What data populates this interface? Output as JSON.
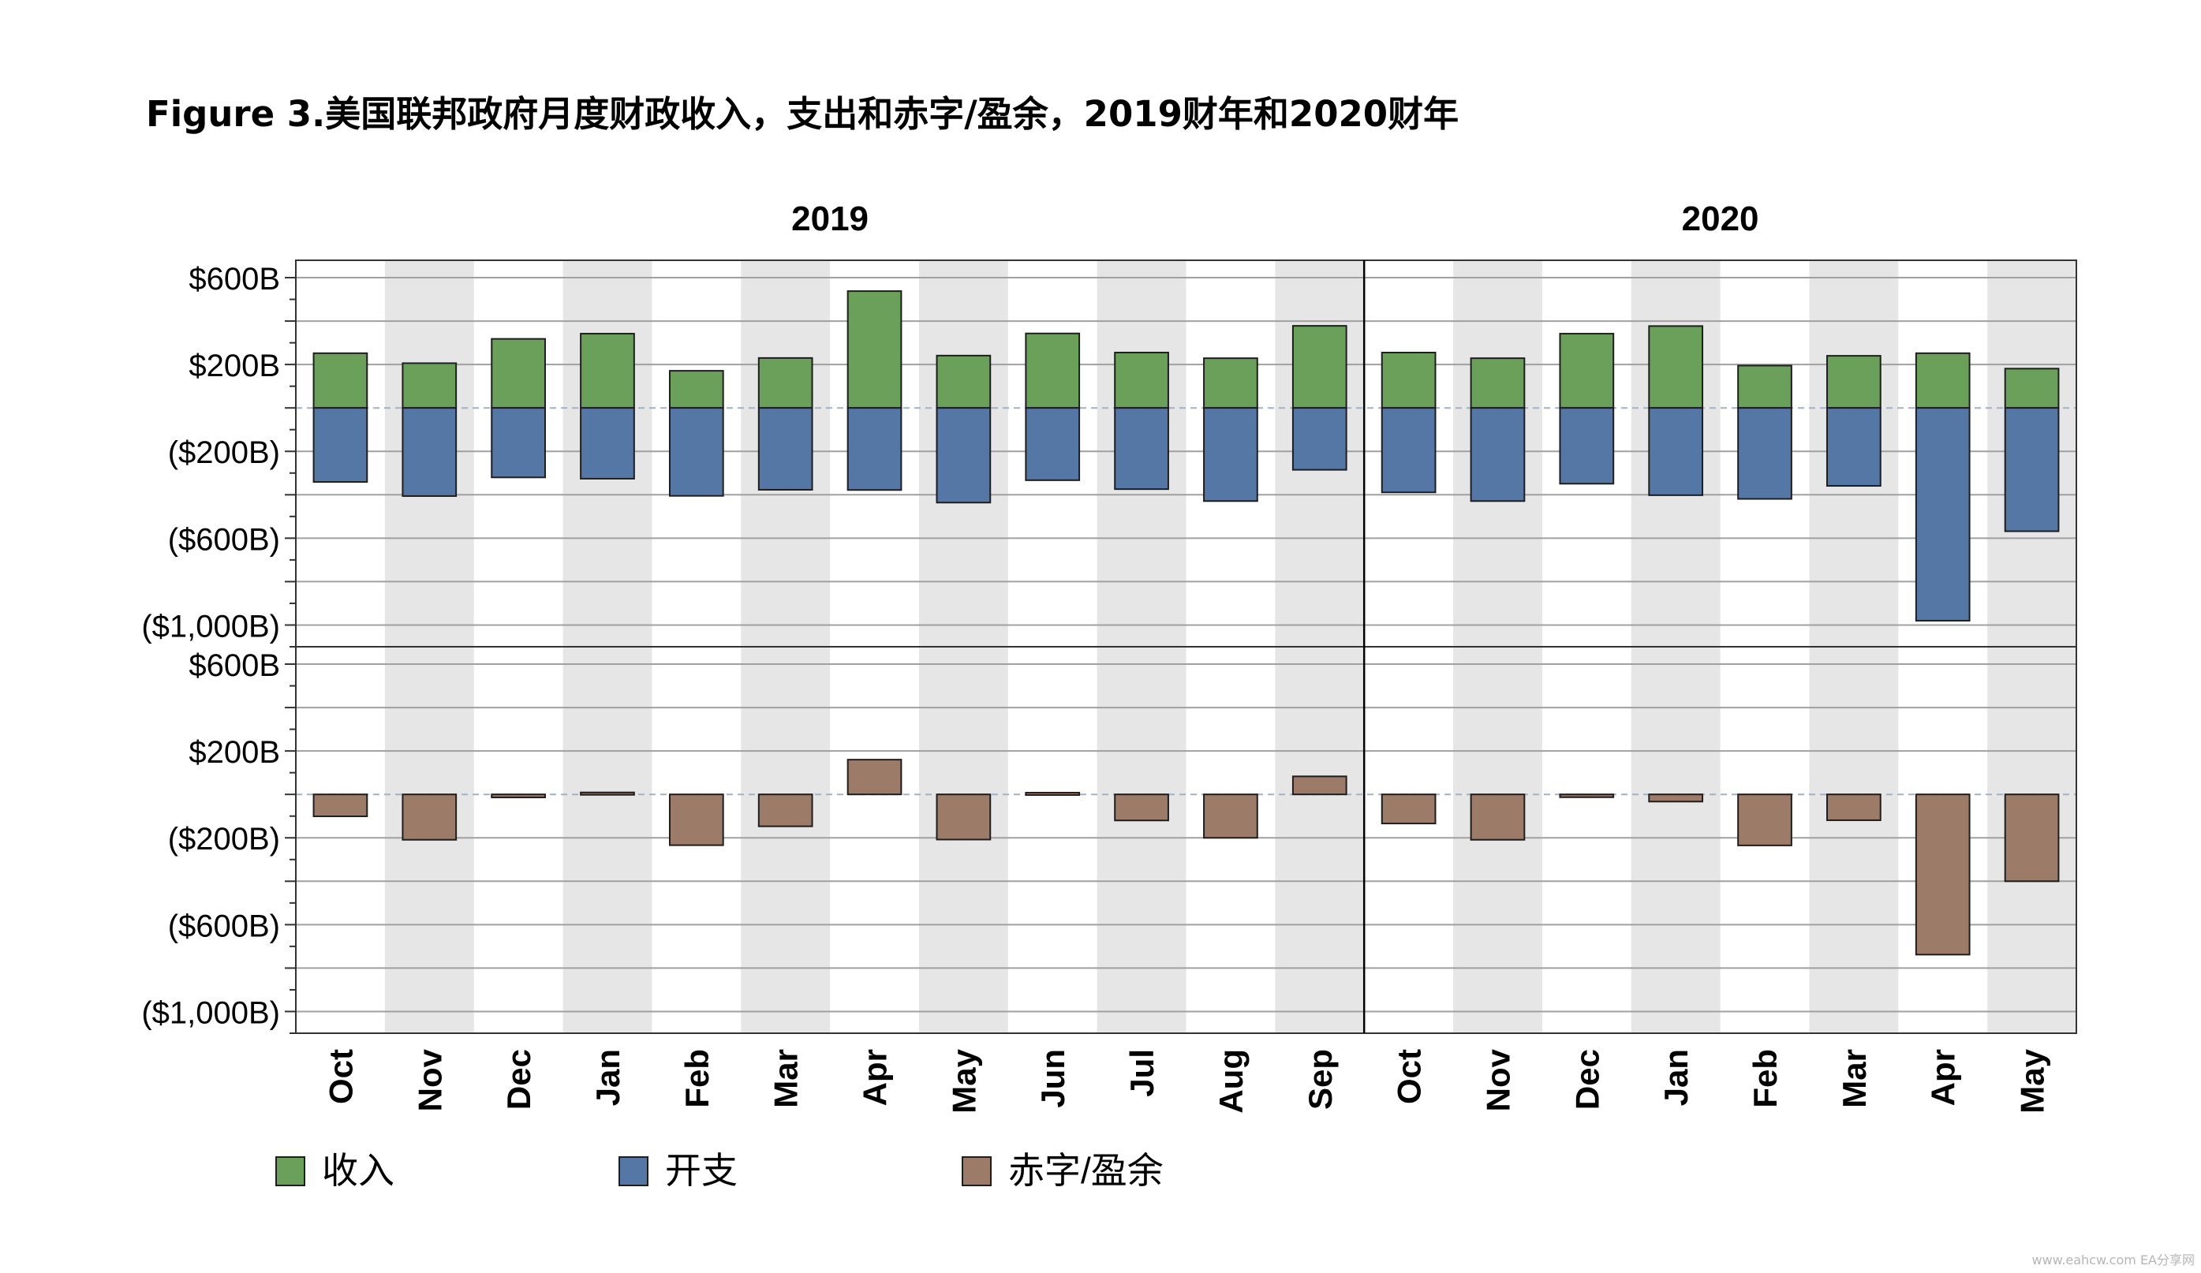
{
  "title": "Figure 3.美国联邦政府月度财政收入，支出和赤字/盈余，2019财年和2020财年",
  "watermark": "www.eahcw.com  EA分享网",
  "colors": {
    "receipts": "#6aa05a",
    "outlays": "#5577a5",
    "deficit": "#9c7b69",
    "band": "#e6e6e6",
    "grid": "#a0a0a0",
    "zero": "#9fb2c7"
  },
  "chart_data": {
    "type": "bar",
    "fiscal_years": [
      {
        "label": "2019",
        "months": 12
      },
      {
        "label": "2020",
        "months": 8
      }
    ],
    "categories": [
      "Oct",
      "Nov",
      "Dec",
      "Jan",
      "Feb",
      "Mar",
      "Apr",
      "May",
      "Jun",
      "Jul",
      "Aug",
      "Sep",
      "Oct",
      "Nov",
      "Dec",
      "Jan",
      "Feb",
      "Mar",
      "Apr",
      "May"
    ],
    "panels": [
      {
        "ylim": [
          -1100,
          680
        ],
        "tick_values": [
          600,
          200,
          -200,
          -600,
          -1000
        ],
        "tick_labels": [
          "$600B",
          "$200B",
          "($200B)",
          "($600B)",
          "($1,000B)"
        ],
        "series": [
          {
            "name": "收入",
            "color_key": "receipts",
            "values": [
              252,
              206,
              318,
              342,
              171,
              230,
              538,
              241,
              343,
              255,
              229,
              378,
              255,
              229,
              342,
              377,
              195,
              240,
              252,
              181
            ]
          },
          {
            "name": "开支",
            "color_key": "outlays",
            "values": [
              -341,
              -406,
              -320,
              -326,
              -405,
              -377,
              -378,
              -436,
              -333,
              -374,
              -429,
              -285,
              -389,
              -429,
              -349,
              -402,
              -419,
              -359,
              -980,
              -568
            ]
          }
        ]
      },
      {
        "ylim": [
          -1100,
          680
        ],
        "tick_values": [
          600,
          200,
          -200,
          -600,
          -1000
        ],
        "tick_labels": [
          "$600B",
          "$200B",
          "($200B)",
          "($600B)",
          "($1,000B)"
        ],
        "series": [
          {
            "name": "赤字/盈余",
            "color_key": "deficit",
            "values": [
              -101,
              -209,
              -14,
              9,
              -234,
              -147,
              160,
              -208,
              8,
              -120,
              -200,
              83,
              -134,
              -209,
              -13,
              -33,
              -235,
              -119,
              -738,
              -400
            ]
          }
        ]
      }
    ],
    "legend": [
      {
        "label": "收入",
        "color_key": "receipts"
      },
      {
        "label": "开支",
        "color_key": "outlays"
      },
      {
        "label": "赤字/盈余",
        "color_key": "deficit"
      }
    ],
    "legend_position": "bottom"
  }
}
